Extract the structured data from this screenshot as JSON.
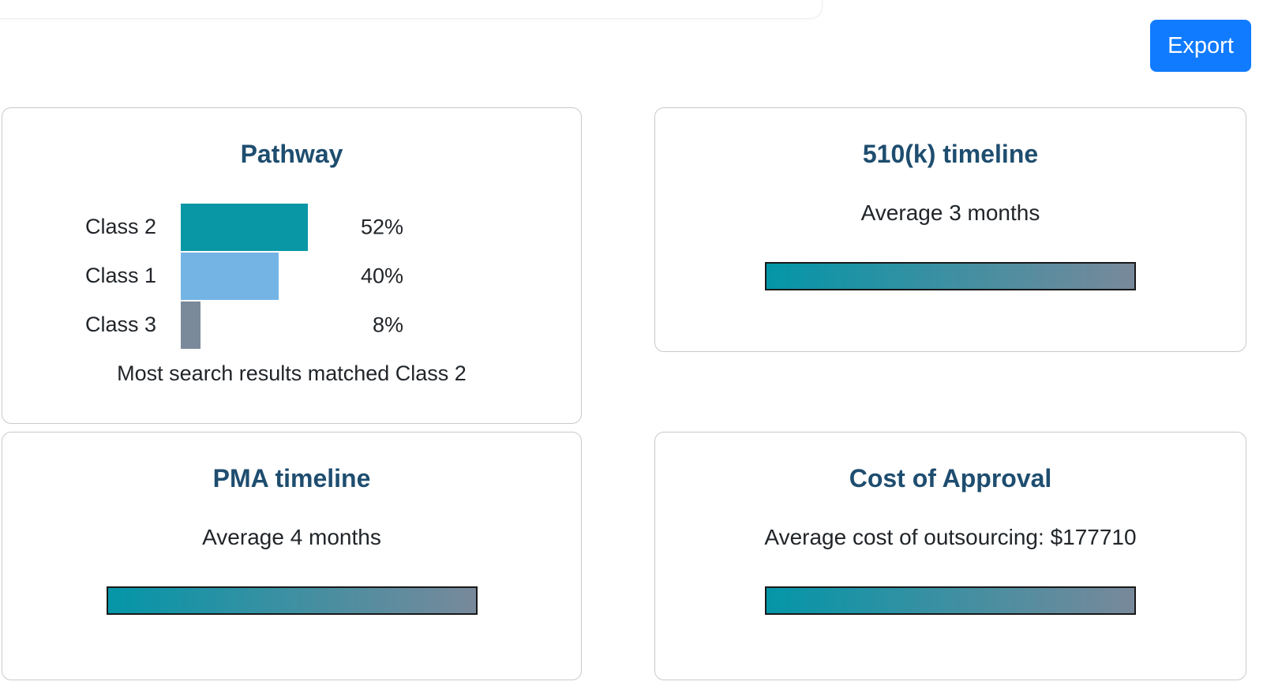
{
  "header": {
    "export_label": "Export"
  },
  "cards": {
    "pathway": {
      "title": "Pathway",
      "caption": "Most search results matched Class 2"
    },
    "timeline_510k": {
      "title": "510(k) timeline",
      "subtitle": "Average 3 months"
    },
    "timeline_pma": {
      "title": "PMA timeline",
      "subtitle": "Average 4 months"
    },
    "cost": {
      "title": "Cost of Approval",
      "subtitle": "Average cost of outsourcing: $177710"
    }
  },
  "chart_data": {
    "type": "bar",
    "orientation": "horizontal",
    "title": "Pathway",
    "categories": [
      "Class 2",
      "Class 1",
      "Class 3"
    ],
    "values": [
      52,
      40,
      8
    ],
    "value_labels": [
      "52%",
      "40%",
      "8%"
    ],
    "bar_colors": [
      "#0997a6",
      "#74b4e5",
      "#7a8a9b"
    ],
    "caption": "Most search results matched Class 2",
    "xlim": [
      0,
      100
    ],
    "grid": false,
    "legend": false
  },
  "colors": {
    "accent_blue": "#107bff",
    "title_navy": "#1e4d6f",
    "body_text": "#212529",
    "gradient_start": "#0396a8",
    "gradient_end": "#78899b",
    "gradient_border": "#191919",
    "card_border": "#c9c9c9"
  }
}
